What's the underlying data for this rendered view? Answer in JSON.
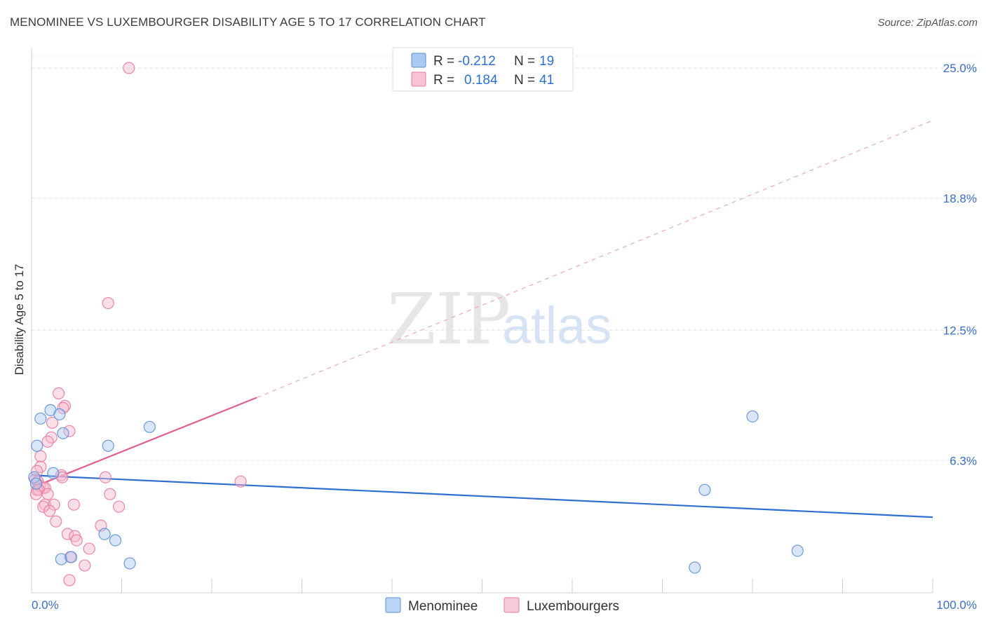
{
  "header": {
    "title": "MENOMINEE VS LUXEMBOURGER DISABILITY AGE 5 TO 17 CORRELATION CHART",
    "source": "Source: ZipAtlas.com"
  },
  "colors": {
    "blue": "#5b8fd9",
    "blue_fill": "#aac8f0",
    "blue_line": "#2f6fd0",
    "pink": "#e87a9f",
    "pink_fill": "#f6b8cb",
    "pink_line": "#e0608a"
  },
  "legend": {
    "r_label": "R =",
    "n_label": "N =",
    "series": [
      {
        "name": "Menominee",
        "r": "-0.212",
        "n": "19"
      },
      {
        "name": "Luxembourgers",
        "r": "0.184",
        "n": "41"
      }
    ]
  },
  "watermark": {
    "zip": "ZIP",
    "atlas": "atlas"
  },
  "chart_data": {
    "type": "scatter",
    "title": "MENOMINEE VS LUXEMBOURGER DISABILITY AGE 5 TO 17 CORRELATION CHART",
    "xlabel": "",
    "ylabel": "Disability Age 5 to 17",
    "xlim": [
      0,
      100
    ],
    "ylim": [
      0,
      25.6
    ],
    "x_tick_labels": [
      "0.0%",
      "100.0%"
    ],
    "y_ticks": [
      6.3,
      12.5,
      18.8,
      25.0
    ],
    "y_tick_labels": [
      "6.3%",
      "12.5%",
      "18.8%",
      "25.0%"
    ],
    "series": [
      {
        "name": "Menominee",
        "points": [
          [
            0.6,
            7.0
          ],
          [
            1.0,
            8.3
          ],
          [
            2.1,
            8.7
          ],
          [
            3.1,
            8.5
          ],
          [
            3.5,
            7.6
          ],
          [
            2.4,
            5.7
          ],
          [
            0.3,
            5.5
          ],
          [
            8.5,
            7.0
          ],
          [
            13.1,
            7.9
          ],
          [
            8.1,
            2.8
          ],
          [
            9.3,
            2.5
          ],
          [
            3.3,
            1.6
          ],
          [
            4.4,
            1.7
          ],
          [
            10.9,
            1.4
          ],
          [
            80.0,
            8.4
          ],
          [
            74.7,
            4.9
          ],
          [
            85.0,
            2.0
          ],
          [
            73.6,
            1.2
          ],
          [
            0.5,
            5.2
          ]
        ],
        "trend": {
          "x": [
            0,
            100
          ],
          "y": [
            5.6,
            3.6
          ],
          "style": "solid"
        }
      },
      {
        "name": "Luxembourgers",
        "points": [
          [
            10.8,
            25.0
          ],
          [
            8.5,
            13.8
          ],
          [
            3.0,
            9.5
          ],
          [
            3.7,
            8.9
          ],
          [
            3.5,
            8.8
          ],
          [
            2.3,
            8.1
          ],
          [
            4.2,
            7.7
          ],
          [
            2.2,
            7.4
          ],
          [
            1.8,
            7.2
          ],
          [
            1.0,
            6.5
          ],
          [
            1.0,
            6.0
          ],
          [
            0.6,
            5.8
          ],
          [
            3.3,
            5.6
          ],
          [
            3.4,
            5.5
          ],
          [
            0.4,
            5.4
          ],
          [
            0.7,
            5.3
          ],
          [
            0.9,
            5.1
          ],
          [
            1.3,
            5.0
          ],
          [
            1.5,
            5.0
          ],
          [
            0.6,
            4.9
          ],
          [
            0.8,
            4.9
          ],
          [
            1.8,
            4.7
          ],
          [
            0.5,
            4.7
          ],
          [
            1.5,
            4.2
          ],
          [
            2.5,
            4.2
          ],
          [
            1.3,
            4.1
          ],
          [
            4.7,
            4.2
          ],
          [
            2.0,
            3.9
          ],
          [
            2.7,
            3.4
          ],
          [
            7.7,
            3.2
          ],
          [
            4.0,
            2.8
          ],
          [
            4.8,
            2.7
          ],
          [
            5.0,
            2.5
          ],
          [
            6.4,
            2.1
          ],
          [
            4.3,
            1.7
          ],
          [
            5.9,
            1.3
          ],
          [
            4.2,
            0.6
          ],
          [
            8.2,
            5.5
          ],
          [
            8.7,
            4.7
          ],
          [
            9.7,
            4.1
          ],
          [
            23.2,
            5.3
          ]
        ],
        "trend": {
          "x": [
            0,
            25
          ],
          "y": [
            5.0,
            9.3
          ],
          "style": "solid",
          "extended": {
            "x": [
              25,
              100
            ],
            "y": [
              9.3,
              22.5
            ],
            "style": "dashed"
          }
        }
      }
    ]
  }
}
